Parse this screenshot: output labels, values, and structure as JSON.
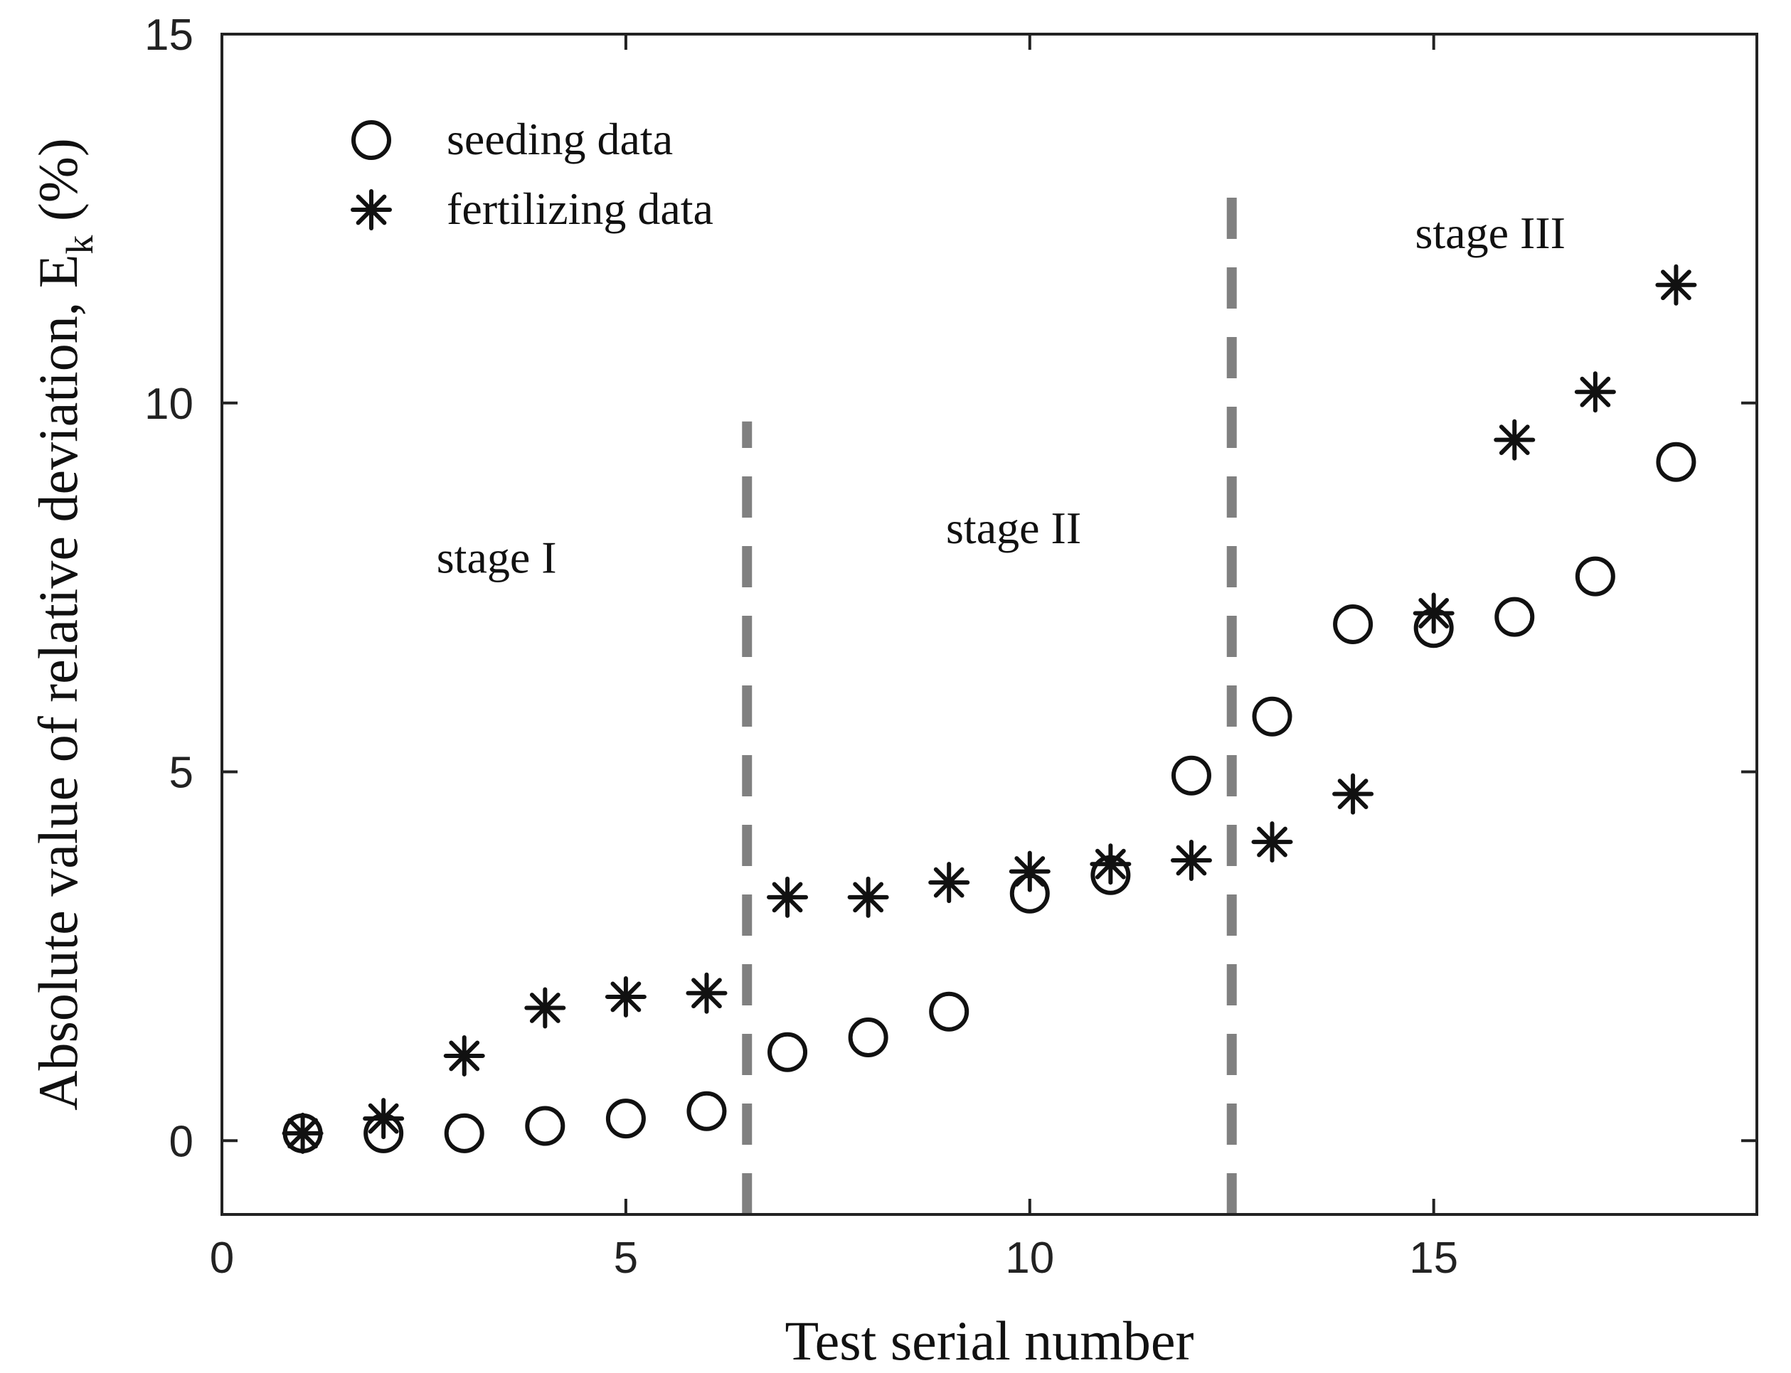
{
  "chart_data": {
    "type": "scatter",
    "xlabel": "Test serial number",
    "ylabel_main": "Absolute value of relative deviation, E",
    "ylabel_subscript": "k",
    "ylabel_unit": "(%)",
    "xlim": [
      0,
      19
    ],
    "ylim": [
      -1,
      15
    ],
    "xticks": [
      0,
      5,
      10,
      15
    ],
    "yticks": [
      0,
      5,
      10,
      15
    ],
    "grid": false,
    "legend_position": "top-left",
    "series": [
      {
        "name": "seeding data",
        "marker": "circle",
        "x": [
          1,
          2,
          3,
          4,
          5,
          6,
          7,
          8,
          9,
          10,
          11,
          12,
          13,
          14,
          15,
          16,
          17,
          18
        ],
        "y": [
          0.1,
          0.1,
          0.1,
          0.2,
          0.3,
          0.4,
          1.2,
          1.4,
          1.75,
          3.35,
          3.6,
          4.95,
          5.75,
          7.0,
          6.95,
          7.1,
          7.65,
          9.2
        ]
      },
      {
        "name": "fertilizing data",
        "marker": "asterisk",
        "x": [
          1,
          2,
          3,
          4,
          5,
          6,
          7,
          8,
          9,
          10,
          11,
          12,
          13,
          14,
          15,
          16,
          17,
          18
        ],
        "y": [
          0.1,
          0.3,
          1.15,
          1.8,
          1.95,
          2.0,
          3.3,
          3.3,
          3.5,
          3.65,
          3.75,
          3.8,
          4.05,
          4.7,
          7.15,
          9.5,
          10.15,
          11.6
        ]
      }
    ],
    "stage_dividers": [
      {
        "x": 6.5,
        "y_range": [
          -1,
          9.75
        ]
      },
      {
        "x": 12.5,
        "y_range": [
          -1,
          12.8
        ]
      }
    ],
    "annotations": [
      {
        "text": "stage I",
        "x": 3.4,
        "y": 7.7
      },
      {
        "text": "stage II",
        "x": 9.8,
        "y": 8.1
      },
      {
        "text": "stage III",
        "x": 15.7,
        "y": 12.1
      }
    ]
  }
}
